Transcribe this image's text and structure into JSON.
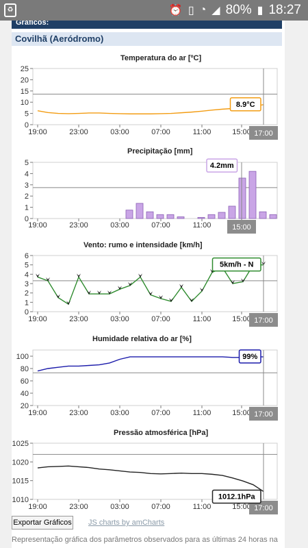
{
  "status_bar": {
    "battery": "80%",
    "time": "18:27",
    "icons": [
      "notification-icon",
      "alarm-icon",
      "vibrate-icon",
      "wifi-icon",
      "signal-icon",
      "battery-icon"
    ]
  },
  "header": {
    "title": "Gráficos:"
  },
  "station": {
    "name": "Covilhã (Aeródromo)"
  },
  "buttons": {
    "export": "Exportar Gráficos"
  },
  "credits": "JS charts by amCharts",
  "footnote": "Representação gráfica dos parâmetros observados para as últimas 24 horas na",
  "chart_data": [
    {
      "type": "line",
      "title": "Temperatura do ar [ºC]",
      "color": "#f39c12",
      "x_ticks": [
        "19:00",
        "23:00",
        "03:00",
        "07:00",
        "11:00",
        "15:00"
      ],
      "cursor_label": "17:00",
      "y_ticks": [
        0,
        5,
        10,
        15,
        20,
        25
      ],
      "ylim": [
        0,
        25
      ],
      "guide_value": 13.6,
      "balloon": "8.9°C",
      "series": [
        {
          "x": [
            0,
            1,
            2,
            3,
            4,
            5,
            6,
            7,
            8,
            9,
            10,
            11,
            12,
            13,
            14,
            15,
            16,
            17,
            18,
            19,
            20,
            21,
            22
          ],
          "values": [
            6.2,
            5.4,
            5.0,
            4.9,
            5.0,
            5.2,
            5.2,
            5.0,
            4.9,
            4.8,
            4.8,
            4.8,
            4.9,
            5.0,
            5.3,
            5.6,
            6.0,
            6.5,
            6.9,
            7.2,
            7.6,
            8.2,
            8.9
          ]
        }
      ]
    },
    {
      "type": "bar",
      "title": "Precipitação [mm]",
      "color": "#c9a5e6",
      "x_ticks": [
        "19:00",
        "23:00",
        "03:00",
        "07:00",
        "11:00",
        "15:00"
      ],
      "cursor_label": "15:00",
      "y_ticks": [
        0,
        1,
        2,
        3,
        4,
        5
      ],
      "ylim": [
        0,
        5
      ],
      "guide_value": 2.75,
      "balloon": "4.2mm",
      "series": [
        {
          "x": [
            0,
            1,
            2,
            3,
            4,
            5,
            6,
            7,
            8,
            9,
            10,
            11,
            12,
            13,
            14,
            15,
            16,
            17,
            18,
            19,
            20,
            21,
            22
          ],
          "values": [
            0,
            0,
            0,
            0,
            0,
            0,
            0,
            0,
            0.75,
            1.35,
            0.6,
            0.35,
            0.35,
            0.15,
            0,
            0.1,
            0.35,
            0.55,
            1.1,
            3.6,
            4.2,
            0.6,
            0.35
          ]
        }
      ]
    },
    {
      "type": "line",
      "title": "Vento: rumo e intensidade [km/h]",
      "color": "#2e8b2e",
      "x_ticks": [
        "19:00",
        "23:00",
        "03:00",
        "07:00",
        "11:00",
        "15:00"
      ],
      "cursor_label": "17:00",
      "y_ticks": [
        0,
        1,
        2,
        3,
        4,
        5,
        6
      ],
      "ylim": [
        0,
        6
      ],
      "guide_value": 3.3,
      "balloon": "5km/h - N",
      "series": [
        {
          "x": [
            0,
            1,
            2,
            3,
            4,
            5,
            6,
            7,
            8,
            9,
            10,
            11,
            12,
            13,
            14,
            15,
            16,
            17,
            18,
            19,
            20,
            21,
            22
          ],
          "values": [
            3.7,
            3.3,
            1.5,
            0.8,
            3.7,
            1.9,
            1.9,
            1.9,
            2.4,
            2.8,
            3.7,
            1.8,
            1.4,
            1.1,
            2.6,
            1.1,
            2.2,
            4.2,
            4.7,
            3.0,
            3.2,
            5.0,
            5.0
          ]
        }
      ]
    },
    {
      "type": "line",
      "title": "Humidade relativa do ar [%]",
      "color": "#1a1aaa",
      "x_ticks": [
        "19:00",
        "23:00",
        "03:00",
        "07:00",
        "11:00",
        "15:00"
      ],
      "cursor_label": "17:00",
      "y_ticks": [
        20,
        40,
        60,
        80,
        100
      ],
      "ylim": [
        20,
        110
      ],
      "guide_value": 73,
      "balloon": "99%",
      "series": [
        {
          "x": [
            0,
            1,
            2,
            3,
            4,
            5,
            6,
            7,
            8,
            9,
            10,
            11,
            12,
            13,
            14,
            15,
            16,
            17,
            18,
            19,
            20,
            21,
            22
          ],
          "values": [
            76,
            80,
            82,
            84,
            84,
            85,
            86,
            89,
            95,
            99,
            99,
            99,
            99,
            99,
            99,
            99,
            99,
            99,
            99,
            98,
            98,
            99,
            99
          ]
        }
      ]
    },
    {
      "type": "line",
      "title": "Pressão atmosférica [hPa]",
      "color": "#222222",
      "x_ticks": [
        "19:00",
        "23:00",
        "03:00",
        "07:00",
        "11:00",
        "15:00"
      ],
      "cursor_label": "17:00",
      "y_ticks": [
        1010,
        1015,
        1020,
        1025
      ],
      "ylim": [
        1010,
        1025
      ],
      "guide_value": 1022,
      "balloon": "1012.1hPa",
      "series": [
        {
          "x": [
            0,
            1,
            2,
            3,
            4,
            5,
            6,
            7,
            8,
            9,
            10,
            11,
            12,
            13,
            14,
            15,
            16,
            17,
            18,
            19,
            20,
            21,
            22
          ],
          "values": [
            1018.4,
            1018.7,
            1018.8,
            1018.9,
            1018.7,
            1018.5,
            1018.1,
            1017.9,
            1017.6,
            1017.3,
            1017.2,
            1016.9,
            1016.8,
            1016.9,
            1017.0,
            1016.9,
            1016.9,
            1016.7,
            1016.4,
            1015.7,
            1014.9,
            1013.9,
            1012.1
          ]
        }
      ]
    }
  ]
}
